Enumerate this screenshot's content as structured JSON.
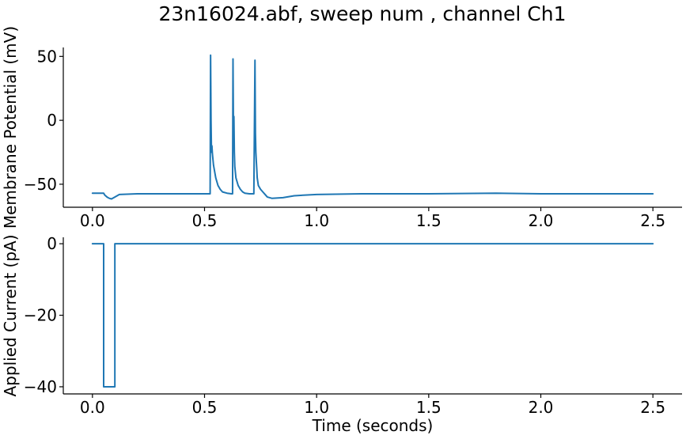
{
  "figure_title": "23n16024.abf, sweep num , channel Ch1",
  "chart_data": [
    {
      "type": "line",
      "ylabel": "Membrane Potential (mV)",
      "xlabel": "",
      "xlim": [
        -0.13,
        2.63
      ],
      "ylim": [
        -68,
        57
      ],
      "xticks": [
        0.0,
        0.5,
        1.0,
        1.5,
        2.0,
        2.5
      ],
      "xtick_labels": [
        "0.0",
        "0.5",
        "1.0",
        "1.5",
        "2.0",
        "2.5"
      ],
      "yticks": [
        -50,
        0,
        50
      ],
      "ytick_labels": [
        "−50",
        "0",
        "50"
      ],
      "color": "#1f77b4",
      "series": [
        {
          "x": [
            0.0,
            0.05,
            0.055,
            0.065,
            0.075,
            0.085,
            0.1,
            0.12,
            0.2,
            0.3,
            0.4,
            0.5,
            0.525,
            0.527,
            0.529,
            0.531,
            0.533,
            0.535,
            0.54,
            0.55,
            0.56,
            0.57,
            0.58,
            0.6,
            0.62,
            0.625,
            0.627,
            0.629,
            0.631,
            0.633,
            0.635,
            0.64,
            0.65,
            0.66,
            0.67,
            0.68,
            0.7,
            0.72,
            0.725,
            0.727,
            0.729,
            0.731,
            0.733,
            0.735,
            0.74,
            0.75,
            0.76,
            0.77,
            0.78,
            0.8,
            0.85,
            0.9,
            1.0,
            1.2,
            1.5,
            1.8,
            2.0,
            2.2,
            2.5
          ],
          "y": [
            -57,
            -57,
            -58.5,
            -60,
            -61,
            -61.5,
            -60,
            -58,
            -57.5,
            -57.5,
            -57.5,
            -57.5,
            -57.5,
            51,
            0,
            -25,
            -20,
            -26,
            -35,
            -45,
            -51,
            -54,
            -56,
            -57,
            -57.5,
            -57.5,
            48,
            -10,
            3,
            -25,
            -36,
            -45,
            -51,
            -54,
            -56,
            -57,
            -57.5,
            -57.5,
            47,
            -10,
            -25,
            -32,
            -38,
            -45,
            -51,
            -54,
            -56,
            -58,
            -60,
            -61,
            -60.5,
            -59,
            -58,
            -57.5,
            -57.5,
            -57,
            -57.5,
            -57.5,
            -57.5
          ]
        }
      ]
    },
    {
      "type": "line",
      "ylabel": "Applied Current (pA)",
      "xlabel": "Time (seconds)",
      "xlim": [
        -0.13,
        2.63
      ],
      "ylim": [
        -42,
        1.8
      ],
      "xticks": [
        0.0,
        0.5,
        1.0,
        1.5,
        2.0,
        2.5
      ],
      "xtick_labels": [
        "0.0",
        "0.5",
        "1.0",
        "1.5",
        "2.0",
        "2.5"
      ],
      "yticks": [
        -40,
        -20,
        0
      ],
      "ytick_labels": [
        "−40",
        "−20",
        "0"
      ],
      "color": "#1f77b4",
      "series": [
        {
          "x": [
            0.0,
            0.05,
            0.05,
            0.1,
            0.1,
            2.5
          ],
          "y": [
            0,
            0,
            -40,
            -40,
            0,
            0
          ]
        }
      ]
    }
  ]
}
